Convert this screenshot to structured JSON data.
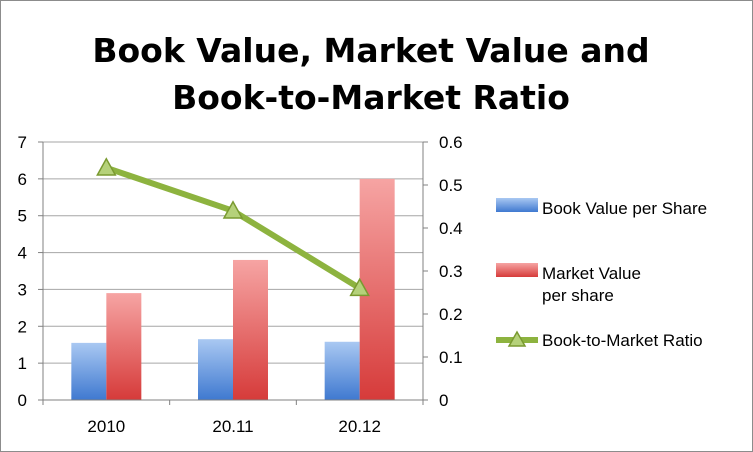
{
  "chart_data": {
    "type": "bar",
    "title": "Book Value, Market Value and Book-to-Market Ratio",
    "categories": [
      "2010",
      "20.11",
      "20.12"
    ],
    "series": [
      {
        "name": "Book Value per Share",
        "type": "bar",
        "axis": "left",
        "color": "#5b8fd6",
        "values": [
          1.55,
          1.65,
          1.58
        ]
      },
      {
        "name": "Market Value per share",
        "type": "bar",
        "axis": "left",
        "color": "#e0504f",
        "values": [
          2.9,
          3.8,
          6.0
        ]
      },
      {
        "name": "Book-to-Market Ratio",
        "type": "line",
        "axis": "right",
        "color": "#8db33f",
        "marker": "triangle",
        "values": [
          0.54,
          0.44,
          0.26
        ]
      }
    ],
    "y_left": {
      "min": 0,
      "max": 7,
      "ticks": [
        "0",
        "1",
        "2",
        "3",
        "4",
        "5",
        "6",
        "7"
      ]
    },
    "y_right": {
      "min": 0,
      "max": 0.6,
      "ticks": [
        "0",
        "0.1",
        "0.2",
        "0.3",
        "0.4",
        "0.5",
        "0.6"
      ]
    },
    "grid": true,
    "legend_position": "right"
  }
}
